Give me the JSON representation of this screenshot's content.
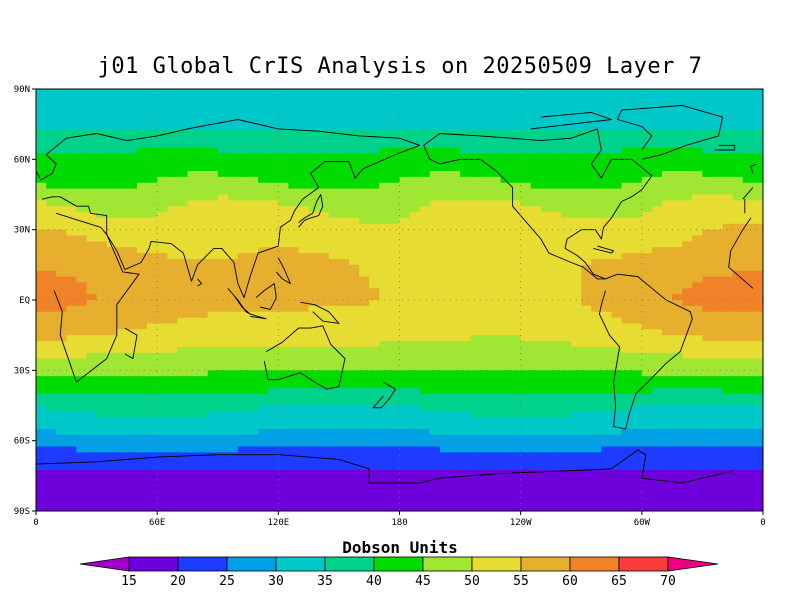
{
  "title": "j01 Global CrIS Analysis on 20250509 Layer 7",
  "units_label": "Dobson Units",
  "lat_ticks": [
    "90N",
    "60N",
    "30N",
    "EQ",
    "30S",
    "60S",
    "90S"
  ],
  "lon_ticks": [
    "0",
    "60E",
    "120E",
    "180",
    "120W",
    "60W",
    "0"
  ],
  "colorbar": {
    "levels": [
      "15",
      "20",
      "25",
      "30",
      "35",
      "40",
      "45",
      "50",
      "55",
      "60",
      "65",
      "70"
    ],
    "colors": [
      "#a000c8",
      "#6e00dc",
      "#1e3cff",
      "#00a0e6",
      "#00c8c8",
      "#00d28c",
      "#00dc00",
      "#a0e632",
      "#e6dc32",
      "#e6af2d",
      "#f08228",
      "#fa3c3c",
      "#f00082"
    ]
  },
  "map_data": {
    "type": "global-lat-lon-field",
    "variable": "ozone column",
    "lat_range": [
      -90,
      90
    ],
    "lon_range": [
      0,
      360
    ],
    "bands_by_latitude": [
      {
        "lat": 90,
        "value": 30
      },
      {
        "lat": 80,
        "value": 32
      },
      {
        "lat": 70,
        "value": 36
      },
      {
        "lat": 60,
        "value": 42
      },
      {
        "lat": 50,
        "value": 45
      },
      {
        "lat": 40,
        "value": 50
      },
      {
        "lat": 30,
        "value": 53
      },
      {
        "lat": 15,
        "value": 56
      },
      {
        "lat": 0,
        "value": 57
      },
      {
        "lat": -15,
        "value": 53
      },
      {
        "lat": -25,
        "value": 48
      },
      {
        "lat": -35,
        "value": 43
      },
      {
        "lat": -45,
        "value": 36
      },
      {
        "lat": -55,
        "value": 31
      },
      {
        "lat": -65,
        "value": 24
      },
      {
        "lat": -75,
        "value": 19
      },
      {
        "lat": -90,
        "value": 15
      }
    ]
  }
}
